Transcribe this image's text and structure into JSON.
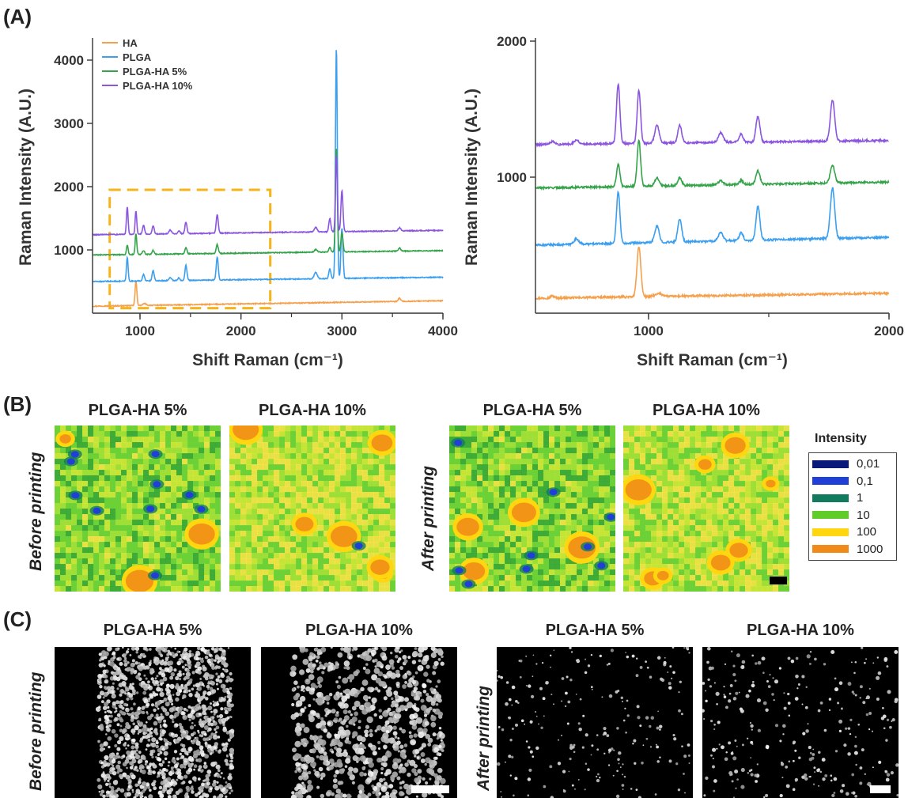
{
  "panels": {
    "a": {
      "letter": "(A)"
    },
    "b": {
      "letter": "(B)",
      "before_label": "Before printing",
      "after_label": "After printing",
      "map_titles": [
        "PLGA-HA 5%",
        "PLGA-HA 10%",
        "PLGA-HA 5%",
        "PLGA-HA 10%"
      ],
      "legend_title": "Intensity",
      "legend": [
        {
          "label": "0,01",
          "color": "#0a1a7a"
        },
        {
          "label": "0,1",
          "color": "#1f3fd6"
        },
        {
          "label": "1",
          "color": "#127a5e"
        },
        {
          "label": "10",
          "color": "#5fcc2a"
        },
        {
          "label": "100",
          "color": "#ffd60f"
        },
        {
          "label": "1000",
          "color": "#f08a18"
        }
      ]
    },
    "c": {
      "letter": "(C)",
      "before_label": "Before printing",
      "after_label": "After printing",
      "image_titles": [
        "PLGA-HA 5%",
        "PLGA-HA 10%",
        "PLGA-HA 5%",
        "PLGA-HA 10%"
      ]
    }
  },
  "chart_data": [
    {
      "type": "line",
      "xlabel": "Shift Raman (cm⁻¹)",
      "ylabel": "Raman Intensity (A.U.)",
      "xlim": [
        530,
        4000
      ],
      "ylim": [
        0,
        4300
      ],
      "xticks": [
        1000,
        2000,
        3000,
        4000
      ],
      "yticks": [
        1000,
        2000,
        3000,
        4000
      ],
      "legend_position": "top-left",
      "highlight_box": {
        "x": [
          700,
          2290
        ],
        "y": [
          80,
          1950
        ],
        "color": "#f6b41a",
        "style": "dashed"
      },
      "series": [
        {
          "name": "HA",
          "color": "#f5a04c",
          "baseline": 110,
          "slope": 0.025,
          "peaks": [
            [
              960,
              380,
              9
            ],
            [
              1045,
              30,
              15
            ],
            [
              3570,
              50,
              12
            ]
          ]
        },
        {
          "name": "PLGA",
          "color": "#3b9ff0",
          "baseline": 500,
          "slope": 0.02,
          "peaks": [
            [
              874,
              380,
              8
            ],
            [
              1035,
              100,
              10
            ],
            [
              1130,
              160,
              10
            ],
            [
              1300,
              50,
              12
            ],
            [
              1385,
              40,
              10
            ],
            [
              1455,
              240,
              10
            ],
            [
              1765,
              360,
              10
            ],
            [
              2740,
              100,
              15
            ],
            [
              2880,
              150,
              10
            ],
            [
              2945,
              3650,
              9
            ],
            [
              3000,
              800,
              10
            ]
          ]
        },
        {
          "name": "PLGA-HA 5%",
          "color": "#34a34a",
          "baseline": 920,
          "slope": 0.02,
          "peaks": [
            [
              874,
              150,
              8
            ],
            [
              960,
              330,
              8
            ],
            [
              1035,
              60,
              10
            ],
            [
              1130,
              60,
              10
            ],
            [
              1455,
              100,
              10
            ],
            [
              1765,
              140,
              10
            ],
            [
              2740,
              40,
              15
            ],
            [
              2880,
              70,
              10
            ],
            [
              2945,
              1650,
              9
            ],
            [
              3000,
              300,
              10
            ],
            [
              3570,
              50,
              12
            ]
          ]
        },
        {
          "name": "PLGA-HA 10%",
          "color": "#8b55e0",
          "baseline": 1240,
          "slope": 0.02,
          "peaks": [
            [
              874,
              440,
              8
            ],
            [
              960,
              370,
              8
            ],
            [
              1035,
              140,
              10
            ],
            [
              1130,
              130,
              10
            ],
            [
              1300,
              60,
              12
            ],
            [
              1385,
              50,
              10
            ],
            [
              1455,
              180,
              10
            ],
            [
              1765,
              290,
              10
            ],
            [
              2740,
              70,
              15
            ],
            [
              2880,
              210,
              10
            ],
            [
              2945,
              1200,
              9
            ],
            [
              3000,
              650,
              10
            ],
            [
              3570,
              50,
              12
            ]
          ]
        }
      ]
    },
    {
      "type": "line",
      "xlabel": "Shift Raman (cm⁻¹)",
      "ylabel": "Raman Intensity (A.U.)",
      "xlim": [
        530,
        2000
      ],
      "ylim": [
        0,
        2000
      ],
      "xticks": [
        1000,
        2000
      ],
      "yticks": [
        1000,
        2000
      ],
      "series": [
        {
          "color": "#f5a04c",
          "baseline": 110,
          "slope": 0.025,
          "peaks": [
            [
              600,
              15,
              8
            ],
            [
              960,
              370,
              8
            ],
            [
              1045,
              20,
              15
            ]
          ]
        },
        {
          "color": "#3b9ff0",
          "baseline": 500,
          "slope": 0.04,
          "peaks": [
            [
              700,
              40,
              10
            ],
            [
              874,
              380,
              7
            ],
            [
              1035,
              120,
              9
            ],
            [
              1130,
              170,
              8
            ],
            [
              1300,
              60,
              10
            ],
            [
              1385,
              60,
              8
            ],
            [
              1455,
              250,
              8
            ],
            [
              1765,
              370,
              9
            ]
          ]
        },
        {
          "color": "#34a34a",
          "baseline": 920,
          "slope": 0.03,
          "peaks": [
            [
              874,
              160,
              7
            ],
            [
              960,
              340,
              7
            ],
            [
              1035,
              60,
              9
            ],
            [
              1130,
              60,
              8
            ],
            [
              1300,
              30,
              10
            ],
            [
              1385,
              30,
              8
            ],
            [
              1455,
              100,
              8
            ],
            [
              1765,
              130,
              9
            ]
          ]
        },
        {
          "color": "#8b55e0",
          "baseline": 1240,
          "slope": 0.02,
          "peaks": [
            [
              600,
              20,
              8
            ],
            [
              700,
              30,
              10
            ],
            [
              874,
              440,
              7
            ],
            [
              960,
              390,
              7
            ],
            [
              1035,
              130,
              9
            ],
            [
              1130,
              130,
              8
            ],
            [
              1300,
              70,
              10
            ],
            [
              1385,
              60,
              8
            ],
            [
              1455,
              190,
              8
            ],
            [
              1765,
              300,
              9
            ]
          ]
        }
      ]
    }
  ]
}
